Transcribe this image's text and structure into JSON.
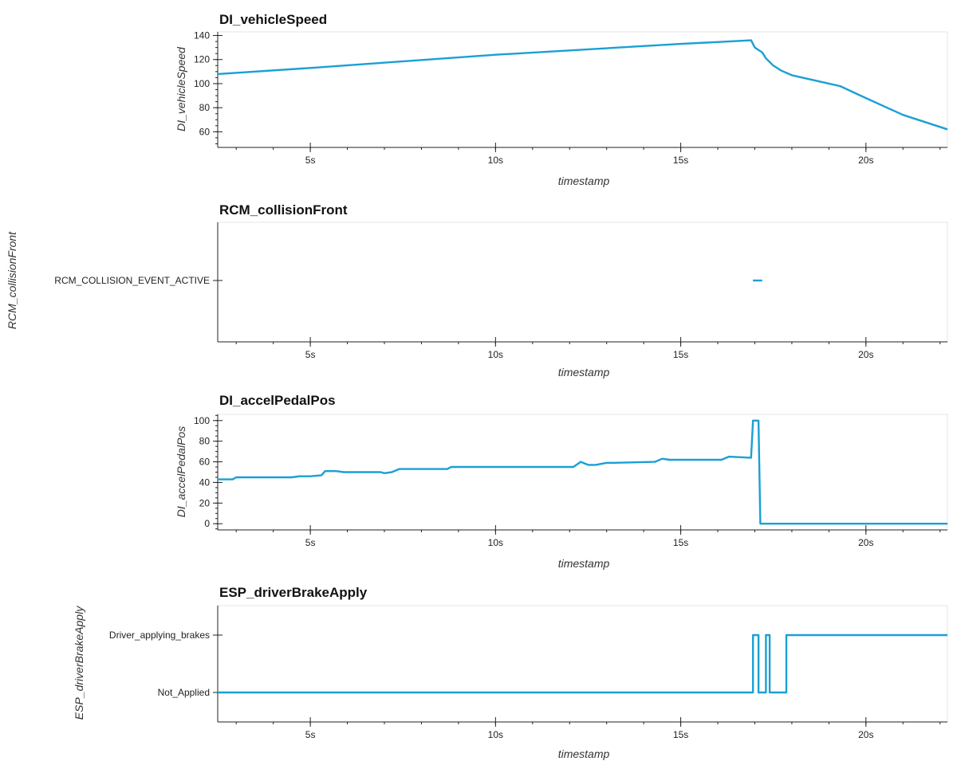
{
  "chart_data": [
    {
      "type": "line",
      "title": "DI_vehicleSpeed",
      "xlabel": "timestamp",
      "ylabel": "DI_vehicleSpeed",
      "xlim": [
        2.5,
        22.2
      ],
      "ylim": [
        47,
        143
      ],
      "xticks": [
        {
          "value": 5,
          "label": "5s"
        },
        {
          "value": 10,
          "label": "10s"
        },
        {
          "value": 15,
          "label": "15s"
        },
        {
          "value": 20,
          "label": "20s"
        }
      ],
      "yticks": [
        {
          "value": 60,
          "label": "60"
        },
        {
          "value": 80,
          "label": "80"
        },
        {
          "value": 100,
          "label": "100"
        },
        {
          "value": 120,
          "label": "120"
        },
        {
          "value": 140,
          "label": "140"
        }
      ],
      "x": [
        2.5,
        5.0,
        10.0,
        15.0,
        16.9,
        17.0,
        17.1,
        17.2,
        17.3,
        17.5,
        17.7,
        18.0,
        19.0,
        19.3,
        20.0,
        21.0,
        22.2
      ],
      "y": [
        108,
        113,
        124,
        133,
        136,
        130,
        128,
        126,
        121,
        115,
        111,
        107,
        100,
        98,
        88,
        74,
        62
      ]
    },
    {
      "type": "line",
      "title": "RCM_collisionFront",
      "xlabel": "timestamp",
      "ylabel": "RCM_collisionFront",
      "xlim": [
        2.5,
        22.2
      ],
      "categories": [
        "RCM_COLLISION_EVENT_ACTIVE"
      ],
      "segments": [
        {
          "x0": 16.95,
          "x1": 17.2,
          "category": "RCM_COLLISION_EVENT_ACTIVE"
        }
      ],
      "xticks": [
        {
          "value": 5,
          "label": "5s"
        },
        {
          "value": 10,
          "label": "10s"
        },
        {
          "value": 15,
          "label": "15s"
        },
        {
          "value": 20,
          "label": "20s"
        }
      ]
    },
    {
      "type": "line",
      "title": "DI_accelPedalPos",
      "xlabel": "timestamp",
      "ylabel": "DI_accelPedalPos",
      "xlim": [
        2.5,
        22.2
      ],
      "ylim": [
        -6,
        106
      ],
      "xticks": [
        {
          "value": 5,
          "label": "5s"
        },
        {
          "value": 10,
          "label": "10s"
        },
        {
          "value": 15,
          "label": "15s"
        },
        {
          "value": 20,
          "label": "20s"
        }
      ],
      "yticks": [
        {
          "value": 0,
          "label": "0"
        },
        {
          "value": 20,
          "label": "20"
        },
        {
          "value": 40,
          "label": "40"
        },
        {
          "value": 60,
          "label": "60"
        },
        {
          "value": 80,
          "label": "80"
        },
        {
          "value": 100,
          "label": "100"
        }
      ],
      "x": [
        2.5,
        2.9,
        3.0,
        4.5,
        4.7,
        5.0,
        5.3,
        5.4,
        5.7,
        5.9,
        6.9,
        7.0,
        7.2,
        7.4,
        8.0,
        8.7,
        8.8,
        10.0,
        12.1,
        12.3,
        12.5,
        12.7,
        13.0,
        13.2,
        14.3,
        14.5,
        14.7,
        15.0,
        16.1,
        16.3,
        16.9,
        16.95,
        17.1,
        17.15,
        22.2
      ],
      "y": [
        43,
        43,
        45,
        45,
        46,
        46,
        47,
        51,
        51,
        50,
        50,
        49,
        50,
        53,
        53,
        53,
        55,
        55,
        55,
        60,
        57,
        57,
        59,
        59,
        60,
        63,
        62,
        62,
        62,
        65,
        64,
        100,
        100,
        0,
        0
      ]
    },
    {
      "type": "line",
      "title": "ESP_driverBrakeApply",
      "xlabel": "timestamp",
      "ylabel": "ESP_driverBrakeApply",
      "xlim": [
        2.5,
        22.2
      ],
      "categories": [
        "Not_Applied",
        "Driver_applying_brakes"
      ],
      "xticks": [
        {
          "value": 5,
          "label": "5s"
        },
        {
          "value": 10,
          "label": "10s"
        },
        {
          "value": 15,
          "label": "15s"
        },
        {
          "value": 20,
          "label": "20s"
        }
      ],
      "x": [
        2.5,
        16.95,
        16.95,
        17.1,
        17.1,
        17.3,
        17.3,
        17.4,
        17.4,
        17.85,
        17.85,
        22.2
      ],
      "y": [
        0,
        0,
        1,
        1,
        0,
        0,
        1,
        1,
        0,
        0,
        1,
        1
      ]
    }
  ]
}
